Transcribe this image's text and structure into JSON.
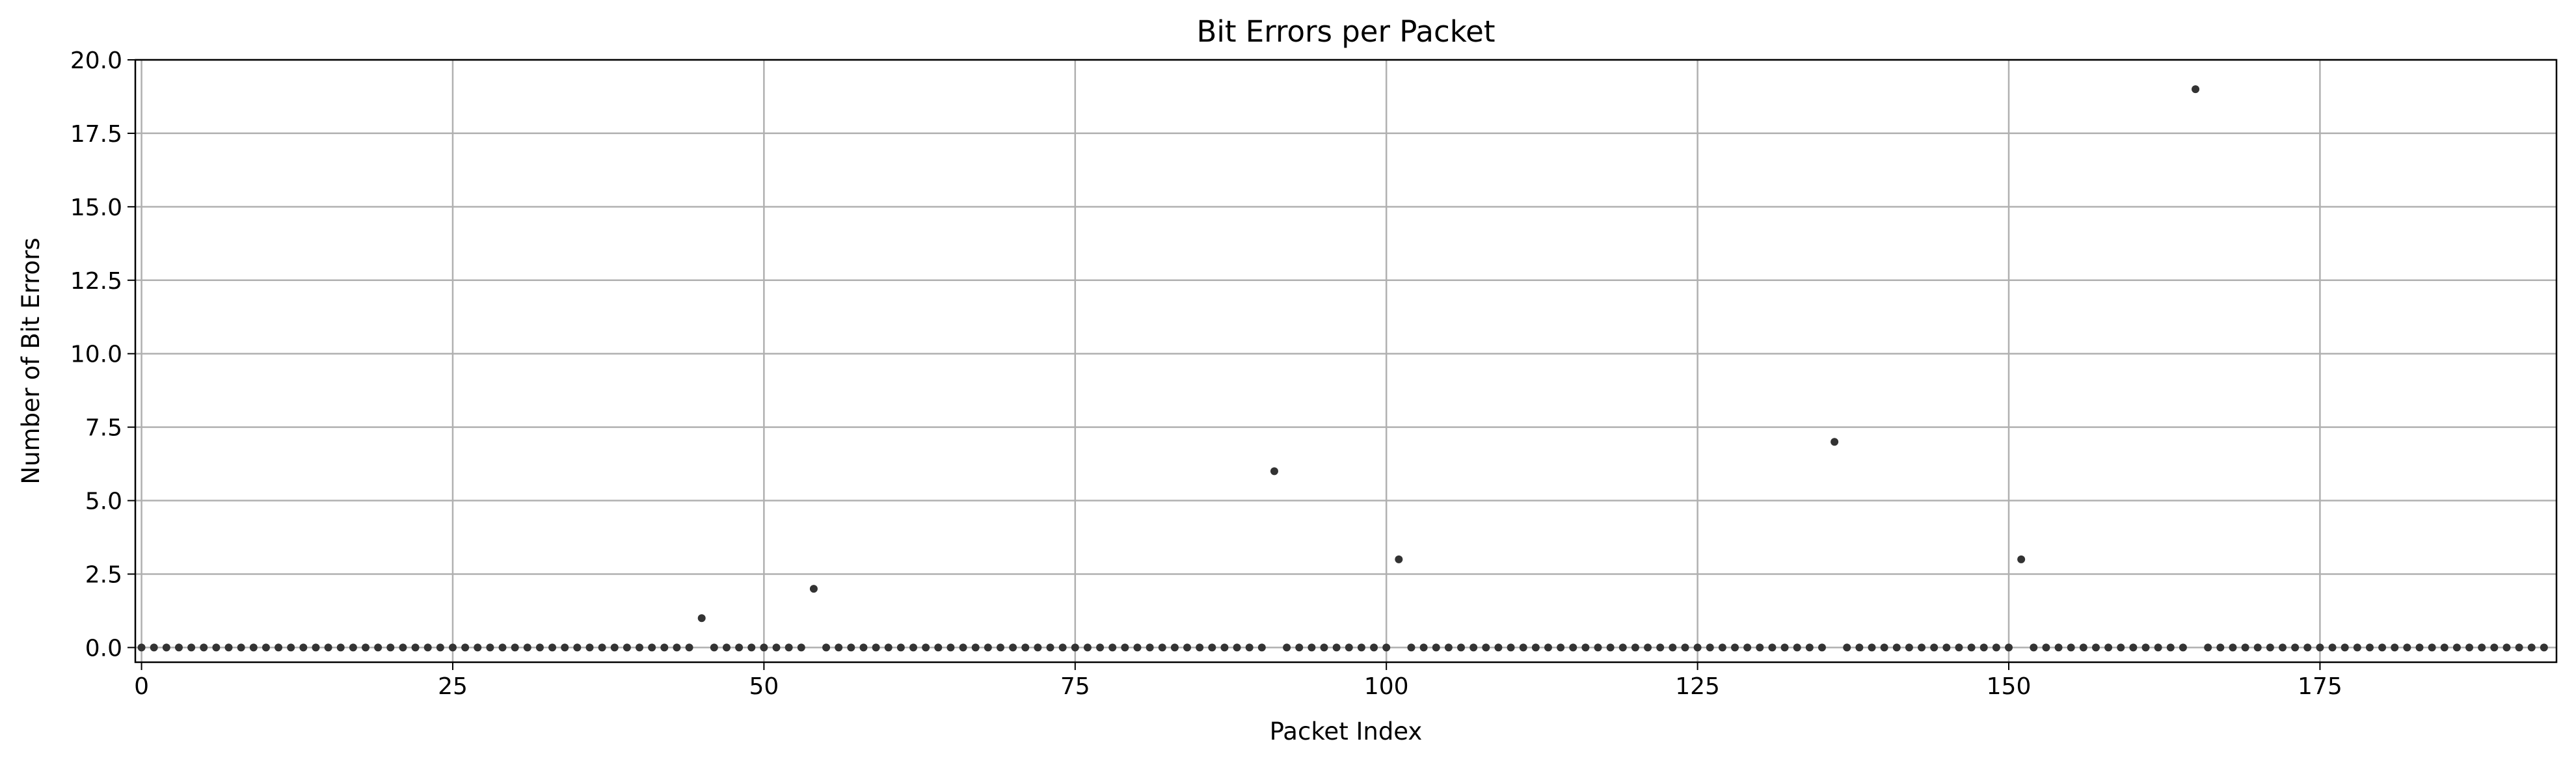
{
  "chart_data": {
    "type": "scatter",
    "title": "Bit Errors per Packet",
    "xlabel": "Packet Index",
    "ylabel": "Number of Bit Errors",
    "xlim": [
      -0.5,
      194
    ],
    "ylim": [
      -0.5,
      20.0
    ],
    "xticks": [
      0,
      25,
      50,
      75,
      100,
      125,
      150,
      175
    ],
    "yticks": [
      0.0,
      2.5,
      5.0,
      7.5,
      10.0,
      12.5,
      15.0,
      17.5,
      20.0
    ],
    "grid": true,
    "marker_color": "#333333",
    "n_packets": 194,
    "nonzero_points": [
      {
        "x": 45,
        "y": 1
      },
      {
        "x": 54,
        "y": 2
      },
      {
        "x": 91,
        "y": 6
      },
      {
        "x": 101,
        "y": 3
      },
      {
        "x": 136,
        "y": 7
      },
      {
        "x": 151,
        "y": 3
      },
      {
        "x": 165,
        "y": 19
      }
    ],
    "default_y": 0
  }
}
